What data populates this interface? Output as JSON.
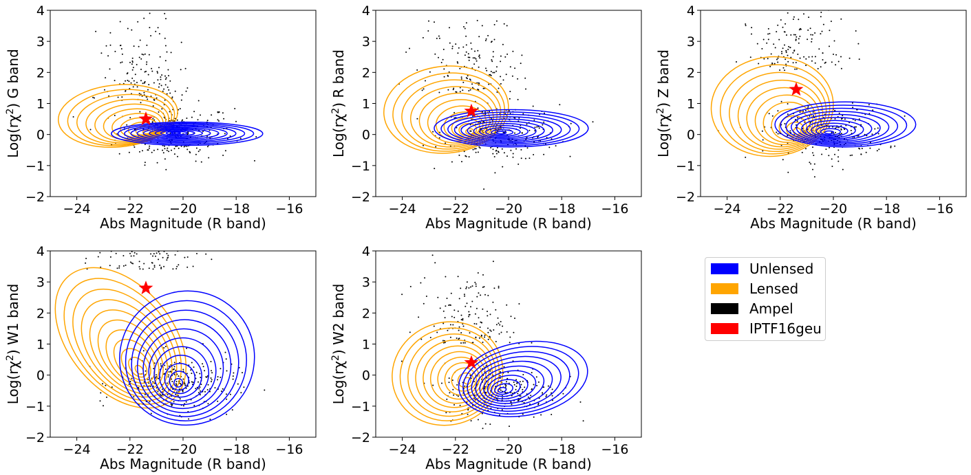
{
  "colors": {
    "unlensed": "#0000ff",
    "lensed": "#ffa500",
    "ampel": "#000000",
    "star": "#ff0000"
  },
  "legend": {
    "location": "upper-left of empty sixth panel",
    "entries": [
      {
        "label": "Unlensed",
        "color": "#0000ff"
      },
      {
        "label": "Lensed",
        "color": "#ffa500"
      },
      {
        "label": "Ampel",
        "color": "#000000"
      },
      {
        "label": "IPTF16geu",
        "color": "#ff0000"
      }
    ]
  },
  "chart_data": [
    {
      "type": "scatter",
      "ylabel_prefix": "Log(rχ",
      "ylabel_sup": "2",
      "ylabel_suffix": ") G band",
      "xlabel": "Abs Magnitude (R band)",
      "xlim": [
        -25,
        -15
      ],
      "ylim": [
        -2,
        4
      ],
      "xticks": [
        -24,
        -22,
        -20,
        -18,
        -16
      ],
      "yticks": [
        -2,
        -1,
        0,
        1,
        2,
        3,
        4
      ],
      "xtick_labels": [
        "−24",
        "−22",
        "−20",
        "−18",
        "−16"
      ],
      "ytick_labels": [
        "−2",
        "−1",
        "0",
        "1",
        "2",
        "3",
        "4"
      ],
      "grid": false,
      "highlight": {
        "name": "IPTF16geu",
        "x": -21.4,
        "y": 0.5
      },
      "unlensed_kde": {
        "center": [
          -20.3,
          0.05
        ],
        "outer_x": [
          -22.7,
          -17.0
        ],
        "outer_y": [
          -0.35,
          0.4
        ]
      },
      "lensed_kde": {
        "center": [
          -21.3,
          0.05
        ],
        "outer_x": [
          -24.7,
          -20.2
        ],
        "outer_y": [
          -0.4,
          1.6
        ]
      }
    },
    {
      "type": "scatter",
      "ylabel_prefix": "Log(rχ",
      "ylabel_sup": "2",
      "ylabel_suffix": ") R band",
      "xlabel": "Abs Magnitude (R band)",
      "xlim": [
        -25,
        -15
      ],
      "ylim": [
        -2,
        4
      ],
      "xticks": [
        -24,
        -22,
        -20,
        -18,
        -16
      ],
      "yticks": [
        -2,
        -1,
        0,
        1,
        2,
        3,
        4
      ],
      "xtick_labels": [
        "−24",
        "−22",
        "−20",
        "−18",
        "−16"
      ],
      "ytick_labels": [
        "−2",
        "−1",
        "0",
        "1",
        "2",
        "3",
        "4"
      ],
      "grid": false,
      "highlight": {
        "name": "IPTF16geu",
        "x": -21.4,
        "y": 0.75
      },
      "unlensed_kde": {
        "center": [
          -20.3,
          0.05
        ],
        "outer_x": [
          -22.8,
          -17.0
        ],
        "outer_y": [
          -0.4,
          0.8
        ]
      },
      "lensed_kde": {
        "center": [
          -21.4,
          0.05
        ],
        "outer_x": [
          -24.7,
          -20.0
        ],
        "outer_y": [
          -0.6,
          2.2
        ]
      }
    },
    {
      "type": "scatter",
      "ylabel_prefix": "Log(rχ",
      "ylabel_sup": "2",
      "ylabel_suffix": ") Z band",
      "xlabel": "Abs Magnitude (R band)",
      "xlim": [
        -25,
        -15
      ],
      "ylim": [
        -2,
        4
      ],
      "xticks": [
        -24,
        -22,
        -20,
        -18,
        -16
      ],
      "yticks": [
        -2,
        -1,
        0,
        1,
        2,
        3,
        4
      ],
      "xtick_labels": [
        "−24",
        "−22",
        "−20",
        "−18",
        "−16"
      ],
      "ytick_labels": [
        "−2",
        "−1",
        "0",
        "1",
        "2",
        "3",
        "4"
      ],
      "grid": false,
      "highlight": {
        "name": "IPTF16geu",
        "x": -21.4,
        "y": 1.45
      },
      "unlensed_kde": {
        "center": [
          -20.2,
          0.05
        ],
        "outer_x": [
          -22.2,
          -16.9
        ],
        "outer_y": [
          -0.4,
          1.05
        ]
      },
      "lensed_kde": {
        "center": [
          -21.3,
          0.05
        ],
        "outer_x": [
          -24.6,
          -20.0
        ],
        "outer_y": [
          -0.7,
          2.5
        ]
      }
    },
    {
      "type": "scatter",
      "ylabel_prefix": "Log(rχ",
      "ylabel_sup": "2",
      "ylabel_suffix": ") W1 band",
      "xlabel": "Abs Magnitude (R band)",
      "xlim": [
        -25,
        -15
      ],
      "ylim": [
        -2,
        4
      ],
      "xticks": [
        -24,
        -22,
        -20,
        -18,
        -16
      ],
      "yticks": [
        -2,
        -1,
        0,
        1,
        2,
        3,
        4
      ],
      "xtick_labels": [
        "−24",
        "−22",
        "−20",
        "−18",
        "−16"
      ],
      "ytick_labels": [
        "−2",
        "−1",
        "0",
        "1",
        "2",
        "3",
        "4"
      ],
      "grid": false,
      "highlight": {
        "name": "IPTF16geu",
        "x": -21.4,
        "y": 2.8
      },
      "unlensed_kde": {
        "center": [
          -20.2,
          -0.3
        ],
        "outer_x": [
          -22.4,
          -17.3
        ],
        "outer_y": [
          -1.6,
          2.7
        ]
      },
      "lensed_kde": {
        "center": [
          -21.6,
          0.1
        ],
        "outer_x": [
          -24.3,
          -20.4
        ],
        "outer_y": [
          -1.4,
          3.8
        ]
      }
    },
    {
      "type": "scatter",
      "ylabel_prefix": "Log(rχ",
      "ylabel_sup": "2",
      "ylabel_suffix": ") W2 band",
      "xlabel": "Abs Magnitude (R band)",
      "xlim": [
        -25,
        -15
      ],
      "ylim": [
        -2,
        4
      ],
      "xticks": [
        -24,
        -22,
        -20,
        -18,
        -16
      ],
      "yticks": [
        -2,
        -1,
        0,
        1,
        2,
        3,
        4
      ],
      "xtick_labels": [
        "−24",
        "−22",
        "−20",
        "−18",
        "−16"
      ],
      "ytick_labels": [
        "−2",
        "−1",
        "0",
        "1",
        "2",
        "3",
        "4"
      ],
      "grid": false,
      "highlight": {
        "name": "IPTF16geu",
        "x": -21.4,
        "y": 0.4
      },
      "unlensed_kde": {
        "center": [
          -20.3,
          -0.5
        ],
        "outer_x": [
          -21.9,
          -17.0
        ],
        "outer_y": [
          -1.3,
          1.05
        ]
      },
      "lensed_kde": {
        "center": [
          -21.5,
          -0.2
        ],
        "outer_x": [
          -24.4,
          -20.2
        ],
        "outer_y": [
          -1.6,
          1.7
        ]
      }
    }
  ]
}
